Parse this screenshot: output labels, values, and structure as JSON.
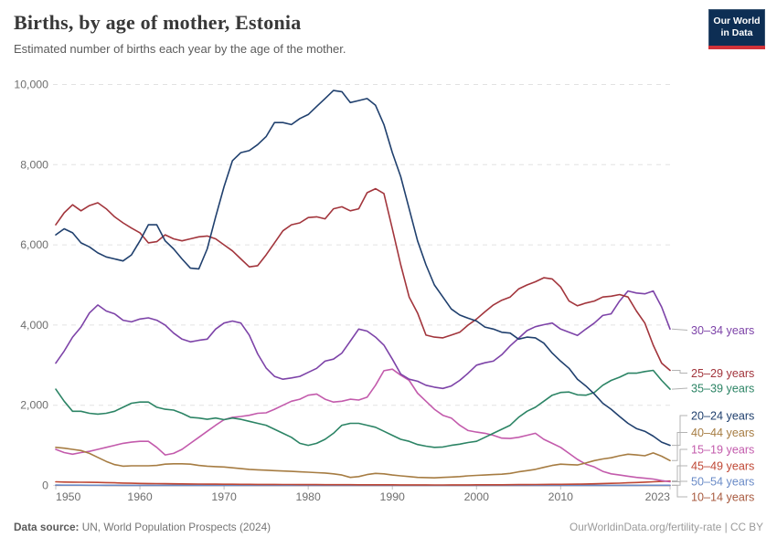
{
  "header": {
    "title": "Births, by age of mother, Estonia",
    "subtitle": "Estimated number of births each year by the age of the mother.",
    "logo": {
      "line1": "Our World",
      "line2": "in Data",
      "bg_color": "#0d2e54",
      "bar_color": "#d13239"
    }
  },
  "footer": {
    "source_label": "Data source:",
    "source_value": "UN, World Population Prospects (2024)",
    "credit": "OurWorldinData.org/fertility-rate | CC BY"
  },
  "chart_data": {
    "type": "line",
    "title": "Births, by age of mother, Estonia",
    "subtitle": "Estimated number of births each year by the age of the mother.",
    "xlabel": "",
    "ylabel": "",
    "grid": "horizontal-dashed",
    "legend_position": "right",
    "ylim": [
      0,
      10000
    ],
    "yticks": [
      0,
      2000,
      4000,
      6000,
      8000,
      10000
    ],
    "ytick_labels": [
      "0",
      "2,000",
      "4,000",
      "6,000",
      "8,000",
      "10,000"
    ],
    "xticks": [
      1950,
      1960,
      1970,
      1980,
      1990,
      2000,
      2010,
      2023
    ],
    "x": [
      1950,
      1951,
      1952,
      1953,
      1954,
      1955,
      1956,
      1957,
      1958,
      1959,
      1960,
      1961,
      1962,
      1963,
      1964,
      1965,
      1966,
      1967,
      1968,
      1969,
      1970,
      1971,
      1972,
      1973,
      1974,
      1975,
      1976,
      1977,
      1978,
      1979,
      1980,
      1981,
      1982,
      1983,
      1984,
      1985,
      1986,
      1987,
      1988,
      1989,
      1990,
      1991,
      1992,
      1993,
      1994,
      1995,
      1996,
      1997,
      1998,
      1999,
      2000,
      2001,
      2002,
      2003,
      2004,
      2005,
      2006,
      2007,
      2008,
      2009,
      2010,
      2011,
      2012,
      2013,
      2014,
      2015,
      2016,
      2017,
      2018,
      2019,
      2020,
      2021,
      2022,
      2023
    ],
    "draw_order": [
      8,
      7,
      6,
      5,
      4,
      2,
      0,
      1,
      3
    ],
    "layout": {
      "x_left": 61,
      "x_right": 733,
      "grid_left": 58,
      "grid_right": 737,
      "y_zero": 531.5,
      "y_top": 92.5,
      "label_x": 756,
      "conn_x1": 735,
      "conn_x2": 741,
      "conn_x3": 752
    },
    "series": [
      {
        "name": "30–34 years",
        "color": "#7d43a8",
        "label_y": 361.5,
        "values": [
          3050,
          3350,
          3700,
          3950,
          4300,
          4500,
          4350,
          4280,
          4120,
          4080,
          4150,
          4180,
          4120,
          4000,
          3800,
          3650,
          3580,
          3620,
          3650,
          3900,
          4050,
          4100,
          4050,
          3750,
          3280,
          2930,
          2720,
          2650,
          2680,
          2720,
          2820,
          2920,
          3100,
          3150,
          3300,
          3600,
          3900,
          3850,
          3700,
          3500,
          3150,
          2780,
          2650,
          2600,
          2500,
          2450,
          2420,
          2480,
          2620,
          2800,
          3000,
          3060,
          3100,
          3260,
          3480,
          3670,
          3860,
          3960,
          4010,
          4050,
          3900,
          3820,
          3740,
          3900,
          4050,
          4240,
          4280,
          4600,
          4850,
          4800,
          4780,
          4850,
          4450,
          3900
        ]
      },
      {
        "name": "25–29 years",
        "color": "#a2353c",
        "label_y": 408.5,
        "values": [
          6500,
          6800,
          7000,
          6850,
          6980,
          7050,
          6900,
          6700,
          6550,
          6420,
          6300,
          6050,
          6080,
          6250,
          6150,
          6100,
          6150,
          6200,
          6220,
          6150,
          6000,
          5850,
          5650,
          5450,
          5480,
          5750,
          6050,
          6350,
          6500,
          6550,
          6680,
          6700,
          6650,
          6900,
          6950,
          6850,
          6900,
          7300,
          7400,
          7280,
          6400,
          5500,
          4700,
          4300,
          3750,
          3700,
          3680,
          3750,
          3820,
          4000,
          4150,
          4330,
          4500,
          4620,
          4700,
          4900,
          5000,
          5080,
          5180,
          5150,
          4950,
          4600,
          4480,
          4550,
          4600,
          4700,
          4720,
          4760,
          4700,
          4350,
          4050,
          3500,
          3050,
          2870
        ]
      },
      {
        "name": "35–39 years",
        "color": "#2c8465",
        "label_y": 425,
        "values": [
          2400,
          2100,
          1850,
          1850,
          1800,
          1780,
          1800,
          1850,
          1950,
          2050,
          2080,
          2080,
          1950,
          1900,
          1880,
          1800,
          1700,
          1680,
          1650,
          1680,
          1640,
          1680,
          1650,
          1600,
          1550,
          1500,
          1400,
          1300,
          1200,
          1050,
          1000,
          1050,
          1150,
          1300,
          1500,
          1550,
          1550,
          1500,
          1450,
          1350,
          1250,
          1150,
          1100,
          1020,
          980,
          950,
          960,
          1000,
          1030,
          1070,
          1100,
          1200,
          1300,
          1400,
          1500,
          1700,
          1850,
          1950,
          2100,
          2250,
          2320,
          2330,
          2260,
          2250,
          2320,
          2500,
          2620,
          2700,
          2800,
          2800,
          2840,
          2870,
          2620,
          2400
        ]
      },
      {
        "name": "20–24 years",
        "color": "#20406e",
        "label_y": 455,
        "values": [
          6250,
          6400,
          6300,
          6050,
          5950,
          5800,
          5700,
          5650,
          5600,
          5750,
          6100,
          6500,
          6500,
          6100,
          5900,
          5650,
          5420,
          5400,
          5900,
          6700,
          7450,
          8100,
          8300,
          8350,
          8500,
          8700,
          9050,
          9050,
          9000,
          9150,
          9250,
          9450,
          9650,
          9850,
          9820,
          9550,
          9600,
          9650,
          9480,
          9000,
          8300,
          7700,
          6900,
          6100,
          5500,
          5000,
          4700,
          4400,
          4250,
          4170,
          4100,
          3950,
          3900,
          3820,
          3800,
          3650,
          3700,
          3680,
          3550,
          3300,
          3100,
          2920,
          2650,
          2480,
          2280,
          2050,
          1900,
          1720,
          1550,
          1420,
          1350,
          1230,
          1080,
          1000
        ]
      },
      {
        "name": "40–44 years",
        "color": "#a67c42",
        "label_y": 473.5,
        "values": [
          950,
          930,
          900,
          870,
          800,
          700,
          600,
          520,
          480,
          490,
          490,
          490,
          500,
          530,
          540,
          540,
          530,
          500,
          480,
          470,
          460,
          440,
          420,
          400,
          390,
          380,
          370,
          360,
          350,
          340,
          330,
          320,
          310,
          290,
          260,
          200,
          220,
          270,
          300,
          290,
          260,
          240,
          220,
          200,
          195,
          190,
          200,
          210,
          220,
          240,
          250,
          260,
          270,
          280,
          300,
          340,
          370,
          400,
          450,
          500,
          530,
          520,
          510,
          560,
          620,
          660,
          690,
          740,
          780,
          760,
          740,
          810,
          730,
          620
        ]
      },
      {
        "name": "15–19 years",
        "color": "#c35bac",
        "label_y": 492,
        "values": [
          900,
          820,
          780,
          820,
          850,
          900,
          950,
          1000,
          1050,
          1080,
          1100,
          1100,
          950,
          760,
          800,
          900,
          1050,
          1200,
          1350,
          1500,
          1640,
          1700,
          1720,
          1750,
          1800,
          1810,
          1900,
          2000,
          2100,
          2150,
          2250,
          2280,
          2150,
          2080,
          2100,
          2150,
          2130,
          2200,
          2500,
          2860,
          2900,
          2750,
          2620,
          2300,
          2100,
          1900,
          1750,
          1680,
          1500,
          1370,
          1330,
          1300,
          1250,
          1180,
          1170,
          1200,
          1250,
          1300,
          1150,
          1050,
          950,
          800,
          650,
          530,
          460,
          350,
          290,
          260,
          230,
          200,
          180,
          160,
          120,
          90
        ]
      },
      {
        "name": "45–49 years",
        "color": "#bf4734",
        "label_y": 510,
        "values": [
          90,
          85,
          82,
          80,
          78,
          75,
          70,
          65,
          60,
          55,
          50,
          48,
          45,
          43,
          40,
          38,
          36,
          35,
          33,
          32,
          30,
          29,
          28,
          27,
          26,
          25,
          24,
          23,
          22,
          21,
          20,
          20,
          19,
          19,
          18,
          18,
          17,
          17,
          16,
          16,
          15,
          14,
          14,
          13,
          13,
          12,
          12,
          13,
          13,
          14,
          15,
          15,
          16,
          17,
          18,
          20,
          21,
          22,
          25,
          27,
          28,
          30,
          33,
          36,
          42,
          47,
          52,
          58,
          65,
          72,
          82,
          92,
          100,
          110
        ]
      },
      {
        "name": "50–54 years",
        "color": "#6a8bc7",
        "label_y": 527,
        "values": [
          8,
          7,
          6,
          6,
          5,
          5,
          4,
          4,
          3,
          3,
          3,
          3,
          3,
          2,
          2,
          2,
          2,
          2,
          2,
          2,
          2,
          2,
          2,
          2,
          2,
          2,
          2,
          2,
          2,
          2,
          2,
          2,
          2,
          2,
          2,
          2,
          2,
          2,
          2,
          2,
          2,
          2,
          2,
          2,
          1,
          1,
          1,
          1,
          1,
          1,
          1,
          1,
          1,
          1,
          1,
          1,
          1,
          2,
          2,
          2,
          2,
          2,
          2,
          2,
          2,
          3,
          3,
          3,
          3,
          3,
          4,
          4,
          4,
          5
        ]
      },
      {
        "name": "10–14 years",
        "color": "#a85a3f",
        "label_y": 544,
        "values": [
          5,
          5,
          4,
          4,
          4,
          4,
          3,
          3,
          3,
          3,
          3,
          3,
          3,
          3,
          3,
          2,
          2,
          2,
          2,
          2,
          2,
          2,
          2,
          2,
          2,
          2,
          2,
          2,
          2,
          2,
          2,
          2,
          2,
          2,
          2,
          2,
          2,
          2,
          2,
          2,
          2,
          2,
          2,
          2,
          2,
          2,
          2,
          2,
          2,
          2,
          2,
          2,
          2,
          2,
          2,
          2,
          2,
          2,
          2,
          2,
          2,
          2,
          2,
          2,
          2,
          2,
          2,
          2,
          2,
          2,
          2,
          2,
          2,
          2
        ]
      }
    ]
  }
}
